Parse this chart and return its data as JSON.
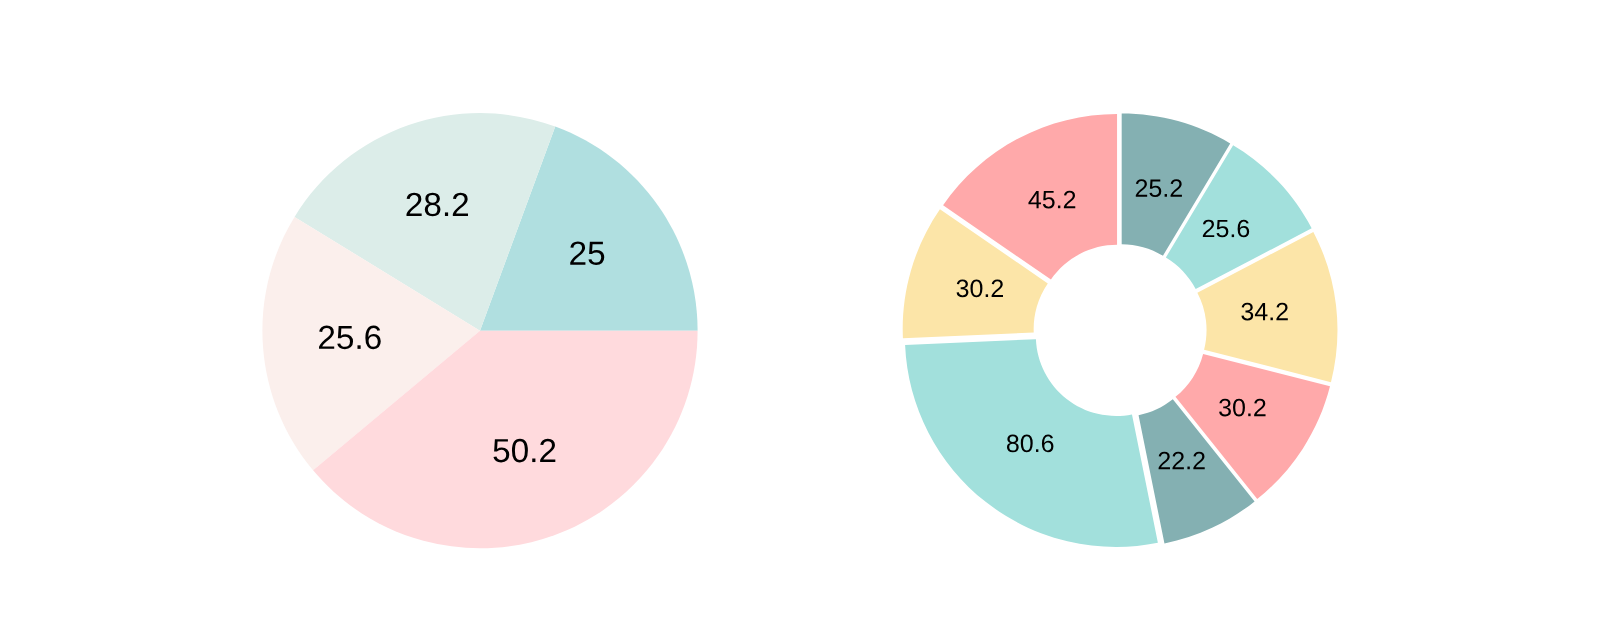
{
  "chart_data": [
    {
      "type": "pie",
      "categories": [
        null,
        null,
        null,
        null
      ],
      "values": [
        25,
        28.2,
        25.6,
        50.2
      ],
      "colors": [
        "#b0dfe0",
        "#dcede9",
        "#fbefec",
        "#ffdadd"
      ],
      "data_labels": true
    },
    {
      "type": "donut",
      "categories": [
        null,
        null,
        null,
        null,
        null,
        null,
        null,
        null
      ],
      "values": [
        25.2,
        25.6,
        34.2,
        30.2,
        22.2,
        80.6,
        30.2,
        45.2
      ],
      "colors": [
        "#84b0b2",
        "#a2e0dc",
        "#fce5a8",
        "#ffa9aa",
        "#84b0b2",
        "#a2e0dc",
        "#fce5a8",
        "#ffa9aa"
      ],
      "data_labels": true
    }
  ]
}
